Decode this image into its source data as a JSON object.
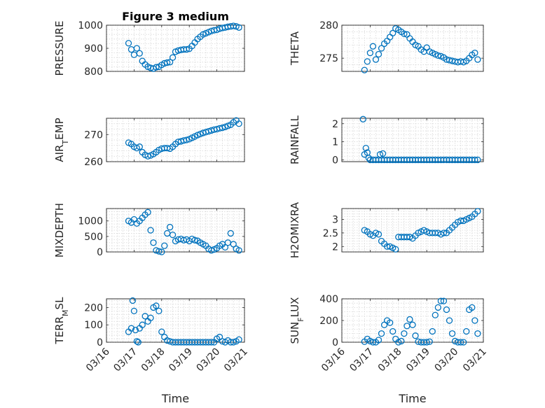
{
  "colors": {
    "marker": "#0072BD",
    "axis": "#262626",
    "grid": "#d7d7d7"
  },
  "chart_data": [
    {
      "type": "scatter",
      "title": "Figure 3 medium",
      "ylabel": "PRESSURE",
      "xlabel": "",
      "ylim": [
        800,
        1000
      ],
      "yticks": [
        800,
        900,
        1000
      ],
      "yticklabels": [
        "800",
        "900",
        "1000"
      ],
      "xlim": [
        0,
        5
      ],
      "xticks": [
        0,
        1,
        2,
        3,
        4,
        5
      ],
      "xticklabels": [],
      "grid": true,
      "series": [
        {
          "x": [
            0.8,
            0.9,
            1.0,
            1.1,
            1.2,
            1.3,
            1.4,
            1.5,
            1.6,
            1.7,
            1.8,
            1.9,
            2.0,
            2.1,
            2.2,
            2.3,
            2.4,
            2.5,
            2.6,
            2.7,
            2.8,
            2.9,
            3.0,
            3.1,
            3.2,
            3.3,
            3.4,
            3.5,
            3.6,
            3.7,
            3.8,
            3.9,
            4.0,
            4.1,
            4.2,
            4.3,
            4.4,
            4.5,
            4.6,
            4.7,
            4.8
          ],
          "y": [
            922,
            895,
            872,
            900,
            878,
            845,
            830,
            820,
            815,
            812,
            818,
            820,
            828,
            835,
            838,
            840,
            860,
            885,
            890,
            893,
            895,
            895,
            898,
            910,
            925,
            940,
            950,
            960,
            965,
            970,
            975,
            978,
            980,
            985,
            988,
            990,
            993,
            995,
            997,
            995,
            990
          ]
        }
      ]
    },
    {
      "type": "scatter",
      "title": "",
      "ylabel": "THETA",
      "xlabel": "",
      "ylim": [
        273,
        280
      ],
      "yticks": [
        275,
        280
      ],
      "yticklabels": [
        "275",
        "280"
      ],
      "xlim": [
        0,
        5
      ],
      "xticks": [
        0,
        1,
        2,
        3,
        4,
        5
      ],
      "xticklabels": [],
      "grid": true,
      "series": [
        {
          "x": [
            0.8,
            0.9,
            1.0,
            1.1,
            1.2,
            1.3,
            1.4,
            1.5,
            1.6,
            1.7,
            1.8,
            1.9,
            2.0,
            2.1,
            2.2,
            2.3,
            2.4,
            2.5,
            2.6,
            2.7,
            2.8,
            2.9,
            3.0,
            3.1,
            3.2,
            3.3,
            3.4,
            3.5,
            3.6,
            3.7,
            3.8,
            3.9,
            4.0,
            4.1,
            4.2,
            4.3,
            4.4,
            4.5,
            4.6,
            4.7,
            4.8
          ],
          "y": [
            273.2,
            274.5,
            275.8,
            276.8,
            274.8,
            275.6,
            276.5,
            277.2,
            277.6,
            278.2,
            278.8,
            279.5,
            279.3,
            279.0,
            278.7,
            278.6,
            278.0,
            277.5,
            277.0,
            276.8,
            276.3,
            276.0,
            276.6,
            276.0,
            275.8,
            275.6,
            275.4,
            275.3,
            275.1,
            274.8,
            274.7,
            274.6,
            274.5,
            274.4,
            274.5,
            274.4,
            274.6,
            275.0,
            275.5,
            275.8,
            274.8
          ]
        }
      ]
    },
    {
      "type": "scatter",
      "title": "",
      "ylabel": "AIR_TEMP",
      "xlabel": "",
      "ylim": [
        260,
        276
      ],
      "yticks": [
        260,
        270
      ],
      "yticklabels": [
        "260",
        "270"
      ],
      "xlim": [
        0,
        5
      ],
      "xticks": [
        0,
        1,
        2,
        3,
        4,
        5
      ],
      "xticklabels": [],
      "grid": true,
      "series": [
        {
          "x": [
            0.8,
            0.9,
            1.0,
            1.1,
            1.2,
            1.3,
            1.4,
            1.5,
            1.6,
            1.7,
            1.8,
            1.9,
            2.0,
            2.1,
            2.2,
            2.3,
            2.4,
            2.5,
            2.6,
            2.7,
            2.8,
            2.9,
            3.0,
            3.1,
            3.2,
            3.3,
            3.4,
            3.5,
            3.6,
            3.7,
            3.8,
            3.9,
            4.0,
            4.1,
            4.2,
            4.3,
            4.4,
            4.5,
            4.6,
            4.7,
            4.8
          ],
          "y": [
            267.0,
            266.5,
            265.5,
            265.0,
            265.5,
            263.5,
            262.5,
            262.0,
            262.3,
            262.8,
            263.5,
            264.3,
            264.8,
            265.0,
            265.0,
            264.8,
            265.5,
            266.5,
            267.3,
            267.5,
            267.8,
            268.0,
            268.3,
            268.8,
            269.3,
            269.8,
            270.2,
            270.6,
            270.9,
            271.2,
            271.5,
            271.8,
            272.0,
            272.3,
            272.5,
            272.8,
            273.2,
            273.6,
            274.5,
            275.2,
            274.0
          ]
        }
      ]
    },
    {
      "type": "scatter",
      "title": "",
      "ylabel": "RAINFALL",
      "xlabel": "",
      "ylim": [
        -0.1,
        2.3
      ],
      "yticks": [
        0,
        1,
        2
      ],
      "yticklabels": [
        "0",
        "1",
        "2"
      ],
      "xlim": [
        0,
        5
      ],
      "xticks": [
        0,
        1,
        2,
        3,
        4,
        5
      ],
      "xticklabels": [],
      "grid": true,
      "series": [
        {
          "x": [
            0.75,
            0.8,
            0.85,
            0.9,
            0.95,
            1.0,
            1.1,
            1.2,
            1.3,
            1.35,
            1.4,
            1.45,
            1.5,
            1.6,
            1.7,
            1.8,
            1.9,
            2.0,
            2.1,
            2.2,
            2.3,
            2.4,
            2.5,
            2.6,
            2.7,
            2.8,
            2.9,
            3.0,
            3.1,
            3.2,
            3.3,
            3.4,
            3.5,
            3.6,
            3.7,
            3.8,
            3.9,
            4.0,
            4.1,
            4.2,
            4.3,
            4.4,
            4.5,
            4.6,
            4.7,
            4.8
          ],
          "y": [
            2.25,
            0.3,
            0.65,
            0.4,
            0.1,
            0.0,
            0.0,
            0.0,
            0.0,
            0.3,
            0.0,
            0.35,
            0.0,
            0.0,
            0.0,
            0.0,
            0.0,
            0.0,
            0.0,
            0.0,
            0.0,
            0.0,
            0.0,
            0.0,
            0.0,
            0.0,
            0.0,
            0.0,
            0.0,
            0.0,
            0.0,
            0.0,
            0.0,
            0.0,
            0.0,
            0.0,
            0.0,
            0.0,
            0.0,
            0.0,
            0.0,
            0.0,
            0.0,
            0.0,
            0.0,
            0.0
          ]
        }
      ]
    },
    {
      "type": "scatter",
      "title": "",
      "ylabel": "MIXDEPTH",
      "xlabel": "",
      "ylim": [
        0,
        1400
      ],
      "yticks": [
        0,
        500,
        1000
      ],
      "yticklabels": [
        "0",
        "500",
        "1000"
      ],
      "xlim": [
        0,
        5
      ],
      "xticks": [
        0,
        1,
        2,
        3,
        4,
        5
      ],
      "xticklabels": [],
      "grid": true,
      "series": [
        {
          "x": [
            0.8,
            0.9,
            1.0,
            1.1,
            1.2,
            1.3,
            1.4,
            1.5,
            1.6,
            1.7,
            1.8,
            1.9,
            2.0,
            2.1,
            2.2,
            2.3,
            2.4,
            2.5,
            2.6,
            2.7,
            2.8,
            2.9,
            3.0,
            3.1,
            3.2,
            3.3,
            3.4,
            3.5,
            3.6,
            3.7,
            3.8,
            3.9,
            4.0,
            4.1,
            4.2,
            4.3,
            4.4,
            4.5,
            4.6,
            4.7,
            4.8
          ],
          "y": [
            1000,
            950,
            1050,
            920,
            1000,
            1100,
            1200,
            1280,
            700,
            300,
            50,
            20,
            0,
            200,
            600,
            800,
            550,
            350,
            400,
            420,
            380,
            400,
            350,
            420,
            380,
            360,
            300,
            250,
            200,
            100,
            50,
            80,
            120,
            200,
            250,
            150,
            300,
            600,
            250,
            100,
            50
          ]
        }
      ]
    },
    {
      "type": "scatter",
      "title": "",
      "ylabel": "H2OMIXRA",
      "xlabel": "",
      "ylim": [
        1.8,
        3.4
      ],
      "yticks": [
        2,
        2.5,
        3
      ],
      "yticklabels": [
        "2",
        "2.5",
        "3"
      ],
      "xlim": [
        0,
        5
      ],
      "xticks": [
        0,
        1,
        2,
        3,
        4,
        5
      ],
      "xticklabels": [],
      "grid": true,
      "series": [
        {
          "x": [
            0.8,
            0.9,
            1.0,
            1.1,
            1.2,
            1.3,
            1.4,
            1.5,
            1.6,
            1.7,
            1.8,
            1.9,
            2.0,
            2.1,
            2.2,
            2.3,
            2.4,
            2.5,
            2.6,
            2.7,
            2.8,
            2.9,
            3.0,
            3.1,
            3.2,
            3.3,
            3.4,
            3.5,
            3.6,
            3.7,
            3.8,
            3.9,
            4.0,
            4.1,
            4.2,
            4.3,
            4.4,
            4.5,
            4.6,
            4.7,
            4.8
          ],
          "y": [
            2.6,
            2.55,
            2.45,
            2.4,
            2.5,
            2.45,
            2.2,
            2.1,
            2.0,
            2.0,
            1.95,
            1.9,
            2.35,
            2.35,
            2.35,
            2.35,
            2.35,
            2.3,
            2.4,
            2.5,
            2.55,
            2.6,
            2.55,
            2.5,
            2.5,
            2.5,
            2.5,
            2.45,
            2.5,
            2.5,
            2.6,
            2.7,
            2.8,
            2.9,
            2.95,
            2.95,
            3.0,
            3.05,
            3.1,
            3.2,
            3.3
          ]
        }
      ]
    },
    {
      "type": "scatter",
      "title": "",
      "ylabel": "TERR_MSL",
      "xlabel": "Time",
      "ylim": [
        0,
        250
      ],
      "yticks": [
        0,
        100,
        200
      ],
      "yticklabels": [
        "0",
        "100",
        "200"
      ],
      "xlim": [
        0,
        5
      ],
      "xticks": [
        0,
        1,
        2,
        3,
        4,
        5
      ],
      "xticklabels": [
        "03/16",
        "03/17",
        "03/18",
        "03/19",
        "03/20",
        "03/21"
      ],
      "grid": true,
      "series": [
        {
          "x": [
            0.8,
            0.9,
            0.95,
            1.0,
            1.05,
            1.1,
            1.15,
            1.2,
            1.3,
            1.4,
            1.5,
            1.6,
            1.7,
            1.8,
            1.9,
            2.0,
            2.1,
            2.2,
            2.3,
            2.4,
            2.5,
            2.6,
            2.7,
            2.8,
            2.9,
            3.0,
            3.1,
            3.2,
            3.3,
            3.4,
            3.5,
            3.6,
            3.7,
            3.8,
            3.9,
            4.0,
            4.1,
            4.2,
            4.3,
            4.4,
            4.5,
            4.6,
            4.7,
            4.8
          ],
          "y": [
            60,
            80,
            240,
            180,
            70,
            5,
            0,
            80,
            100,
            150,
            120,
            140,
            200,
            210,
            180,
            60,
            30,
            10,
            5,
            0,
            0,
            0,
            0,
            0,
            0,
            0,
            0,
            0,
            0,
            0,
            0,
            0,
            0,
            0,
            0,
            20,
            30,
            5,
            0,
            10,
            0,
            0,
            5,
            15
          ]
        }
      ]
    },
    {
      "type": "scatter",
      "title": "",
      "ylabel": "SUN_FLUX",
      "xlabel": "Time",
      "ylim": [
        0,
        400
      ],
      "yticks": [
        0,
        200,
        400
      ],
      "yticklabels": [
        "0",
        "200",
        "400"
      ],
      "xlim": [
        0,
        5
      ],
      "xticks": [
        0,
        1,
        2,
        3,
        4,
        5
      ],
      "xticklabels": [
        "03/16",
        "03/17",
        "03/18",
        "03/19",
        "03/20",
        "03/21"
      ],
      "grid": true,
      "series": [
        {
          "x": [
            0.8,
            0.9,
            1.0,
            1.1,
            1.2,
            1.3,
            1.4,
            1.5,
            1.6,
            1.7,
            1.8,
            1.9,
            2.0,
            2.1,
            2.2,
            2.3,
            2.4,
            2.5,
            2.6,
            2.7,
            2.8,
            2.9,
            3.0,
            3.1,
            3.2,
            3.3,
            3.4,
            3.5,
            3.6,
            3.7,
            3.8,
            3.9,
            4.0,
            4.1,
            4.2,
            4.3,
            4.4,
            4.5,
            4.6,
            4.7,
            4.8
          ],
          "y": [
            5,
            30,
            10,
            0,
            0,
            20,
            80,
            160,
            200,
            180,
            100,
            30,
            0,
            10,
            80,
            150,
            210,
            160,
            60,
            5,
            0,
            0,
            0,
            5,
            100,
            250,
            320,
            380,
            380,
            300,
            200,
            80,
            10,
            0,
            0,
            0,
            100,
            300,
            320,
            200,
            80
          ]
        }
      ]
    }
  ]
}
